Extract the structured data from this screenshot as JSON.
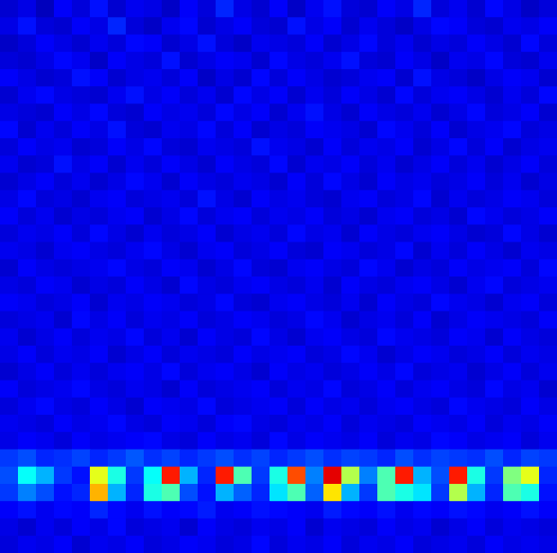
{
  "chart_data": {
    "type": "heatmap",
    "xlim": [
      0,
      31
    ],
    "ylim": [
      0,
      32
    ],
    "zlim": [
      0,
      100
    ],
    "color": "jet",
    "tick_labels": false,
    "cells": [
      [
        8,
        10,
        6,
        12,
        9,
        14,
        8,
        11,
        10,
        7,
        12,
        9,
        16,
        10,
        8,
        12,
        7,
        11,
        14,
        9,
        8,
        12,
        10,
        16,
        9,
        11,
        8,
        13,
        10,
        7,
        9
      ],
      [
        10,
        14,
        9,
        8,
        12,
        10,
        16,
        9,
        7,
        11,
        13,
        8,
        10,
        12,
        9,
        8,
        14,
        10,
        12,
        8,
        11,
        9,
        7,
        10,
        13,
        12,
        9,
        8,
        11,
        10,
        12
      ],
      [
        7,
        9,
        12,
        10,
        8,
        11,
        9,
        13,
        12,
        8,
        10,
        14,
        9,
        7,
        11,
        10,
        9,
        12,
        8,
        10,
        13,
        9,
        11,
        8,
        10,
        9,
        12,
        10,
        8,
        13,
        9
      ],
      [
        9,
        8,
        10,
        13,
        11,
        7,
        12,
        10,
        9,
        14,
        8,
        10,
        12,
        11,
        8,
        13,
        10,
        9,
        11,
        14,
        9,
        8,
        12,
        10,
        7,
        11,
        10,
        13,
        9,
        8,
        11
      ],
      [
        12,
        10,
        8,
        9,
        14,
        12,
        8,
        10,
        11,
        9,
        12,
        7,
        10,
        8,
        13,
        9,
        12,
        10,
        8,
        9,
        11,
        12,
        8,
        14,
        10,
        9,
        7,
        10,
        12,
        11,
        8
      ],
      [
        8,
        11,
        13,
        10,
        9,
        8,
        11,
        14,
        10,
        12,
        9,
        11,
        8,
        13,
        10,
        12,
        8,
        11,
        9,
        12,
        10,
        8,
        13,
        9,
        11,
        12,
        10,
        8,
        11,
        9,
        13
      ],
      [
        10,
        9,
        8,
        12,
        10,
        13,
        9,
        8,
        12,
        10,
        11,
        9,
        13,
        10,
        12,
        8,
        11,
        14,
        10,
        8,
        12,
        10,
        9,
        11,
        8,
        10,
        13,
        9,
        10,
        12,
        8
      ],
      [
        13,
        8,
        11,
        9,
        12,
        10,
        14,
        9,
        8,
        11,
        10,
        13,
        9,
        12,
        8,
        10,
        9,
        12,
        11,
        10,
        8,
        13,
        11,
        9,
        12,
        8,
        10,
        11,
        13,
        9,
        10
      ],
      [
        9,
        12,
        10,
        11,
        8,
        9,
        12,
        10,
        13,
        9,
        8,
        11,
        10,
        9,
        14,
        11,
        10,
        8,
        12,
        9,
        11,
        10,
        12,
        8,
        10,
        13,
        9,
        12,
        8,
        10,
        11
      ],
      [
        11,
        8,
        9,
        14,
        10,
        12,
        8,
        11,
        9,
        12,
        10,
        8,
        12,
        10,
        9,
        13,
        8,
        11,
        10,
        12,
        9,
        11,
        8,
        10,
        12,
        9,
        11,
        8,
        10,
        12,
        9
      ],
      [
        8,
        10,
        12,
        9,
        11,
        8,
        10,
        13,
        11,
        8,
        12,
        10,
        9,
        11,
        10,
        8,
        12,
        9,
        13,
        10,
        8,
        12,
        10,
        11,
        9,
        10,
        12,
        9,
        11,
        8,
        10
      ],
      [
        10,
        13,
        9,
        10,
        8,
        11,
        12,
        9,
        10,
        11,
        9,
        14,
        10,
        8,
        12,
        10,
        11,
        9,
        8,
        11,
        12,
        9,
        10,
        13,
        8,
        11,
        9,
        10,
        12,
        11,
        9
      ],
      [
        12,
        9,
        11,
        8,
        10,
        9,
        11,
        12,
        8,
        10,
        13,
        9,
        11,
        12,
        9,
        11,
        10,
        12,
        9,
        10,
        8,
        11,
        12,
        9,
        10,
        8,
        13,
        11,
        9,
        10,
        12
      ],
      [
        9,
        11,
        10,
        12,
        9,
        13,
        10,
        8,
        11,
        9,
        10,
        12,
        8,
        10,
        11,
        9,
        13,
        10,
        11,
        8,
        12,
        10,
        9,
        11,
        12,
        10,
        8,
        9,
        13,
        10,
        8
      ],
      [
        11,
        10,
        8,
        11,
        12,
        10,
        9,
        11,
        13,
        10,
        8,
        11,
        12,
        9,
        10,
        12,
        9,
        8,
        12,
        11,
        9,
        10,
        13,
        8,
        11,
        9,
        12,
        10,
        8,
        11,
        10
      ],
      [
        8,
        12,
        10,
        9,
        10,
        11,
        13,
        10,
        9,
        12,
        11,
        8,
        10,
        13,
        9,
        8,
        11,
        12,
        10,
        9,
        13,
        11,
        8,
        10,
        9,
        12,
        10,
        11,
        12,
        9,
        13
      ],
      [
        10,
        9,
        12,
        11,
        8,
        10,
        9,
        12,
        10,
        8,
        13,
        10,
        9,
        11,
        12,
        10,
        9,
        11,
        8,
        12,
        10,
        9,
        11,
        12,
        10,
        8,
        11,
        13,
        9,
        10,
        11
      ],
      [
        12,
        11,
        9,
        10,
        12,
        8,
        11,
        10,
        12,
        11,
        9,
        10,
        13,
        9,
        8,
        11,
        12,
        10,
        9,
        11,
        8,
        12,
        10,
        9,
        13,
        11,
        10,
        8,
        11,
        12,
        9
      ],
      [
        9,
        10,
        11,
        8,
        13,
        10,
        12,
        9,
        11,
        10,
        12,
        9,
        10,
        12,
        11,
        9,
        10,
        13,
        11,
        8,
        10,
        11,
        9,
        12,
        8,
        10,
        12,
        11,
        10,
        9,
        12
      ],
      [
        11,
        8,
        10,
        12,
        9,
        11,
        10,
        13,
        9,
        11,
        8,
        12,
        10,
        9,
        13,
        10,
        8,
        11,
        12,
        10,
        9,
        13,
        11,
        10,
        9,
        12,
        11,
        8,
        12,
        10,
        9
      ],
      [
        10,
        12,
        9,
        11,
        10,
        12,
        8,
        10,
        12,
        9,
        11,
        10,
        9,
        12,
        10,
        11,
        12,
        9,
        10,
        13,
        11,
        8,
        10,
        12,
        11,
        9,
        10,
        12,
        9,
        11,
        10
      ],
      [
        8,
        10,
        12,
        9,
        11,
        9,
        11,
        12,
        10,
        13,
        9,
        11,
        12,
        10,
        8,
        12,
        10,
        11,
        9,
        10,
        12,
        10,
        13,
        9,
        10,
        11,
        8,
        10,
        12,
        9,
        11
      ],
      [
        12,
        9,
        10,
        11,
        13,
        10,
        9,
        11,
        10,
        8,
        12,
        9,
        10,
        11,
        12,
        9,
        11,
        10,
        13,
        9,
        10,
        12,
        9,
        11,
        12,
        10,
        9,
        13,
        10,
        11,
        8
      ],
      [
        9,
        11,
        13,
        10,
        9,
        12,
        10,
        8,
        12,
        11,
        10,
        13,
        9,
        10,
        11,
        12,
        9,
        12,
        10,
        11,
        9,
        11,
        12,
        10,
        9,
        13,
        11,
        10,
        9,
        12,
        10
      ],
      [
        11,
        10,
        9,
        12,
        10,
        11,
        13,
        10,
        9,
        12,
        11,
        9,
        12,
        13,
        10,
        9,
        11,
        10,
        12,
        9,
        11,
        10,
        9,
        12,
        11,
        10,
        12,
        9,
        11,
        10,
        12
      ],
      [
        10,
        12,
        11,
        9,
        12,
        10,
        11,
        12,
        13,
        10,
        9,
        12,
        10,
        11,
        9,
        13,
        10,
        12,
        11,
        10,
        12,
        9,
        11,
        10,
        13,
        12,
        10,
        11,
        12,
        9,
        11
      ],
      [
        18,
        20,
        16,
        17,
        19,
        16,
        18,
        21,
        17,
        19,
        16,
        18,
        20,
        17,
        19,
        16,
        18,
        20,
        17,
        19,
        18,
        16,
        20,
        17,
        19,
        18,
        17,
        20,
        16,
        19,
        18
      ],
      [
        20,
        38,
        30,
        18,
        14,
        60,
        40,
        18,
        38,
        85,
        30,
        16,
        85,
        45,
        18,
        40,
        80,
        25,
        90,
        55,
        25,
        45,
        85,
        30,
        20,
        85,
        40,
        18,
        50,
        60,
        16
      ],
      [
        18,
        25,
        20,
        14,
        16,
        70,
        30,
        16,
        40,
        45,
        20,
        14,
        30,
        22,
        16,
        35,
        45,
        22,
        65,
        30,
        18,
        45,
        40,
        35,
        18,
        55,
        30,
        16,
        45,
        40,
        14
      ],
      [
        12,
        14,
        11,
        13,
        12,
        16,
        13,
        11,
        14,
        12,
        13,
        15,
        11,
        12,
        14,
        13,
        12,
        11,
        15,
        13,
        12,
        14,
        11,
        13,
        12,
        14,
        13,
        11,
        12,
        14,
        12
      ],
      [
        10,
        8,
        11,
        9,
        12,
        10,
        13,
        9,
        10,
        11,
        8,
        12,
        10,
        9,
        11,
        10,
        12,
        8,
        11,
        10,
        9,
        12,
        10,
        11,
        8,
        10,
        12,
        9,
        11,
        10,
        9
      ],
      [
        9,
        11,
        10,
        12,
        8,
        11,
        10,
        12,
        9,
        10,
        12,
        11,
        9,
        10,
        13,
        9,
        11,
        10,
        12,
        9,
        11,
        10,
        12,
        9,
        10,
        11,
        9,
        12,
        10,
        11,
        10
      ]
    ]
  }
}
